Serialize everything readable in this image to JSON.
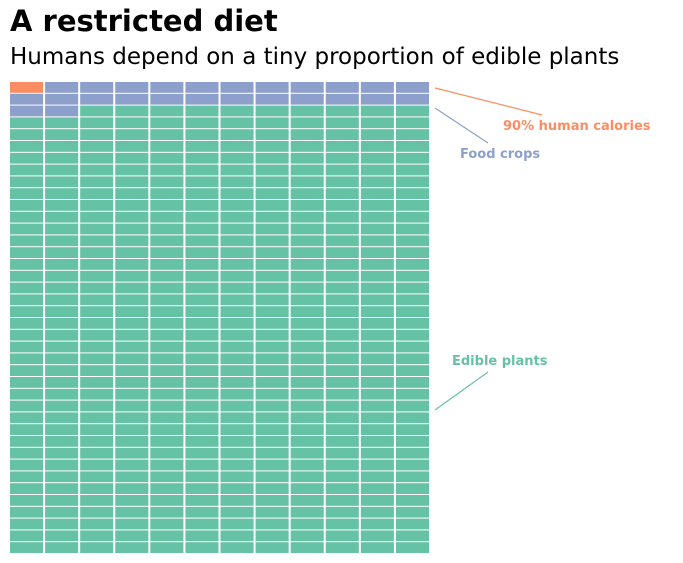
{
  "title": "A restricted diet",
  "subtitle": "Humans depend on a tiny proportion of edible plants",
  "chart_data": {
    "type": "waffle",
    "columns": 12,
    "rows": 40,
    "fill_order": "row-major from top-left",
    "series": [
      {
        "name": "90% human calories",
        "count": 1,
        "color": "#fc8d62"
      },
      {
        "name": "Food crops",
        "count": 25,
        "color": "#8da0cb"
      },
      {
        "name": "Edible plants",
        "count": 454,
        "color": "#66c2a5"
      }
    ]
  }
}
